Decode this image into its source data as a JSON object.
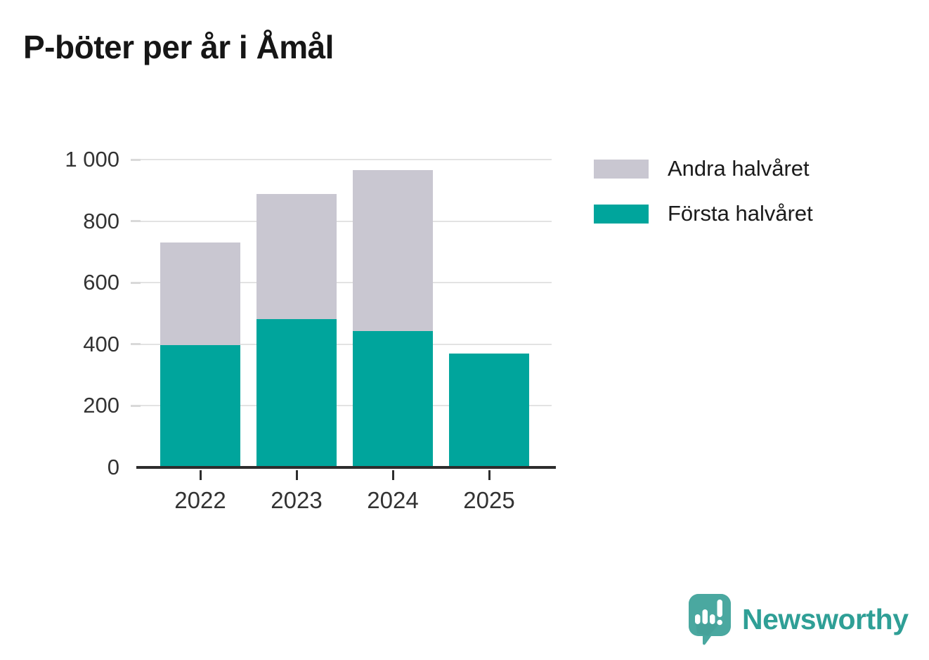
{
  "title": "P-böter per år i Åmål",
  "chart_data": {
    "type": "bar",
    "stacked": true,
    "title": "P-böter per år i Åmål",
    "categories": [
      "2022",
      "2023",
      "2024",
      "2025"
    ],
    "series": [
      {
        "name": "Första halvåret",
        "color": "#00a59c",
        "values": [
          397,
          481,
          444,
          370
        ]
      },
      {
        "name": "Andra halvåret",
        "color": "#c9c7d1",
        "values": [
          333,
          407,
          521,
          0
        ]
      }
    ],
    "xlabel": "",
    "ylabel": "",
    "ylim": [
      0,
      1000
    ],
    "yticks": [
      0,
      200,
      400,
      600,
      800,
      1000
    ],
    "ytick_labels": [
      "0",
      "200",
      "400",
      "600",
      "800",
      "1 000"
    ],
    "grid": "horizontal",
    "legend_position": "top-right"
  },
  "legend": {
    "items": [
      {
        "label": "Andra halvåret",
        "color": "#c9c7d1"
      },
      {
        "label": "Första halvåret",
        "color": "#00a59c"
      }
    ]
  },
  "branding": {
    "name": "Newsworthy",
    "icon": "bar-chart-speech-bubble-icon",
    "color": "#2f9f96",
    "icon_color": "#4aa8a0"
  },
  "colors": {
    "axis_line": "#2d2d2d",
    "gridline": "#e3e3e3",
    "tick_label": "#333333",
    "title_text": "#161616"
  }
}
